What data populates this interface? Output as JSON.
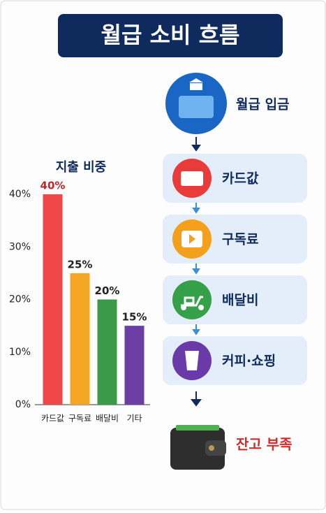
{
  "header": {
    "title": "월급 소비 흐름"
  },
  "chart_data": {
    "type": "bar",
    "title": "지출 비중",
    "categories": [
      "카드값",
      "구독료",
      "배달비",
      "기타"
    ],
    "values": [
      40,
      25,
      20,
      15
    ],
    "value_labels": [
      "40%",
      "25%",
      "20%",
      "15%"
    ],
    "colors": [
      "#f04848",
      "#f5a623",
      "#3a9a48",
      "#6b3fa3"
    ],
    "label_colors": [
      "#c0262a",
      "#222222",
      "#222222",
      "#222222"
    ],
    "ylim": [
      0,
      40
    ],
    "yticks": [
      {
        "value": 0,
        "label": "0%"
      },
      {
        "value": 10,
        "label": "10%"
      },
      {
        "value": 20,
        "label": "20%"
      },
      {
        "value": 30,
        "label": "30%"
      },
      {
        "value": 40,
        "label": "40%"
      }
    ]
  },
  "flow": {
    "nodes": [
      {
        "label": "월급 입금"
      },
      {
        "label": "카드값"
      },
      {
        "label": "구독료"
      },
      {
        "label": "배달비"
      },
      {
        "label": "커피·쇼핑"
      },
      {
        "label": "잔고 부족"
      }
    ]
  }
}
